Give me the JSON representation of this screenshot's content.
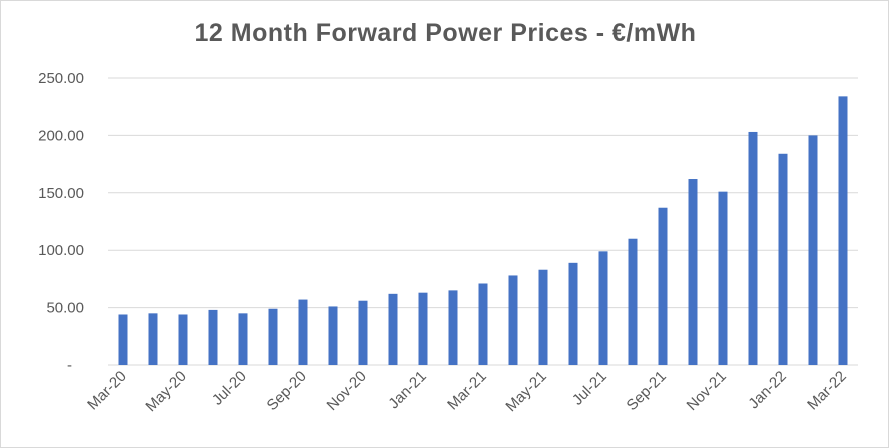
{
  "chart_data": {
    "type": "bar",
    "title": "12 Month Forward Power Prices - €/mWh",
    "xlabel": "",
    "ylabel": "",
    "ylim": [
      0,
      250
    ],
    "y_ticks": [
      {
        "value": 0,
        "label": "-"
      },
      {
        "value": 50,
        "label": "50.00"
      },
      {
        "value": 100,
        "label": "100.00"
      },
      {
        "value": 150,
        "label": "150.00"
      },
      {
        "value": 200,
        "label": "200.00"
      },
      {
        "value": 250,
        "label": "250.00"
      }
    ],
    "grid": true,
    "legend": "none",
    "bar_color": "#4472C4",
    "categories": [
      "Mar-20",
      "Apr-20",
      "May-20",
      "Jun-20",
      "Jul-20",
      "Aug-20",
      "Sep-20",
      "Oct-20",
      "Nov-20",
      "Dec-20",
      "Jan-21",
      "Feb-21",
      "Mar-21",
      "Apr-21",
      "May-21",
      "Jun-21",
      "Jul-21",
      "Aug-21",
      "Sep-21",
      "Oct-21",
      "Nov-21",
      "Dec-21",
      "Jan-22",
      "Feb-22",
      "Mar-22"
    ],
    "x_tick_labels": [
      "Mar-20",
      "",
      "May-20",
      "",
      "Jul-20",
      "",
      "Sep-20",
      "",
      "Nov-20",
      "",
      "Jan-21",
      "",
      "Mar-21",
      "",
      "May-21",
      "",
      "Jul-21",
      "",
      "Sep-21",
      "",
      "Nov-21",
      "",
      "Jan-22",
      "",
      "Mar-22"
    ],
    "values": [
      44,
      45,
      44,
      48,
      45,
      49,
      57,
      51,
      56,
      62,
      63,
      65,
      71,
      78,
      83,
      89,
      99,
      110,
      137,
      162,
      151,
      203,
      184,
      200,
      234
    ]
  }
}
